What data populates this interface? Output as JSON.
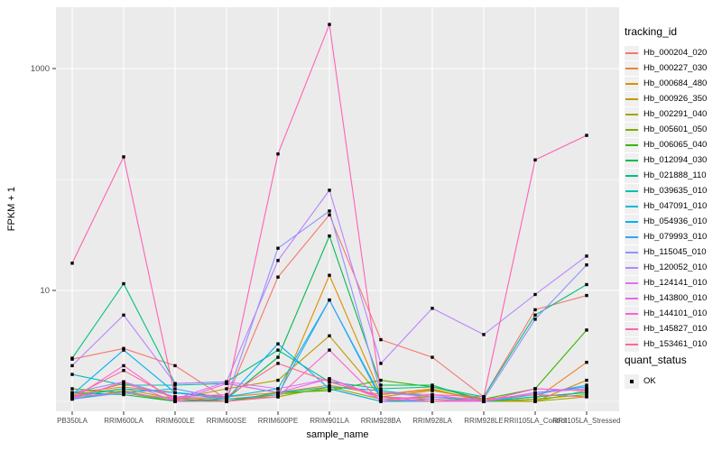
{
  "panel": {
    "bg": "#EBEBEB",
    "grid_major": "#FFFFFF",
    "grid_minor": "#FFFFFF",
    "tick_color": "#333333",
    "tick_label_color": "#4D4D4D",
    "point_color": "#000000"
  },
  "axes": {
    "y_title": "FPKM + 1",
    "x_title": "sample_name",
    "y_tick_labels": [
      "10",
      "1000"
    ]
  },
  "legend": {
    "title": "tracking_id"
  },
  "legend2": {
    "title": "quant_status",
    "items": [
      "OK"
    ]
  },
  "chart_data": {
    "type": "line",
    "title": "",
    "xlabel": "sample_name",
    "ylabel": "FPKM + 1",
    "y_scale": "log10",
    "y_ticks": [
      10,
      1000
    ],
    "y_minor": [
      1,
      100
    ],
    "ylim": [
      0.9,
      3200
    ],
    "grid": "on",
    "legend_position": "right",
    "categories": [
      "PB350LA",
      "RRIM600LA",
      "RRIM600LE",
      "RRIM600SE",
      "RRIM600PE",
      "RRIM901LA",
      "RRIM928BA",
      "RRIM928LA",
      "RRIM928LE",
      "RRII105LA_Control",
      "RRII105LA_Stressed"
    ],
    "series": [
      {
        "name": "Hb_000204_020",
        "color": "#F8766D",
        "values": [
          2.4,
          3.0,
          2.1,
          1.05,
          13.2,
          48,
          3.6,
          2.5,
          1.1,
          6.7,
          9.0
        ]
      },
      {
        "name": "Hb_000227_030",
        "color": "#EA8331",
        "values": [
          1.2,
          1.35,
          1.2,
          1.1,
          1.2,
          1.4,
          1.15,
          1.3,
          1.0,
          1.05,
          2.25
        ]
      },
      {
        "name": "Hb_000684_480",
        "color": "#D89000",
        "values": [
          1.1,
          1.45,
          1.1,
          1.0,
          1.1,
          13.7,
          1.15,
          1.28,
          1.0,
          1.0,
          1.55
        ]
      },
      {
        "name": "Hb_000926_350",
        "color": "#C09B00",
        "values": [
          1.15,
          1.3,
          1.05,
          1.3,
          1.55,
          3.9,
          1.1,
          1.25,
          1.05,
          1.0,
          1.25
        ]
      },
      {
        "name": "Hb_002291_040",
        "color": "#A3A500",
        "values": [
          1.05,
          1.25,
          1.0,
          1.05,
          1.1,
          1.35,
          1.05,
          1.1,
          1.0,
          1.0,
          1.1
        ]
      },
      {
        "name": "Hb_005601_050",
        "color": "#7CAE00",
        "values": [
          1.1,
          1.2,
          1.0,
          1.0,
          1.15,
          1.3,
          1.0,
          1.05,
          1.0,
          1.05,
          1.15
        ]
      },
      {
        "name": "Hb_006065_040",
        "color": "#39B600",
        "values": [
          1.3,
          1.2,
          1.05,
          1.0,
          1.2,
          1.25,
          1.55,
          1.35,
          1.05,
          1.3,
          4.4
        ]
      },
      {
        "name": "Hb_012094_030",
        "color": "#00BB4E",
        "values": [
          1.2,
          1.15,
          1.0,
          1.05,
          2.5,
          31,
          1.4,
          1.4,
          1.0,
          1.1,
          1.2
        ]
      },
      {
        "name": "Hb_021888_110",
        "color": "#00C087",
        "values": [
          2.45,
          11.5,
          1.45,
          1.5,
          2.9,
          1.5,
          1.3,
          1.35,
          1.1,
          6.0,
          11.3
        ]
      },
      {
        "name": "Hb_039635_010",
        "color": "#00C0AF",
        "values": [
          1.75,
          1.4,
          1.4,
          1.45,
          1.2,
          1.35,
          1.25,
          1.1,
          1.0,
          1.1,
          1.2
        ]
      },
      {
        "name": "Hb_047091_010",
        "color": "#00BCD8",
        "values": [
          1.1,
          1.3,
          1.2,
          1.1,
          1.3,
          8.2,
          1.1,
          1.05,
          1.0,
          1.2,
          1.3
        ]
      },
      {
        "name": "Hb_054936_010",
        "color": "#00B0F6",
        "values": [
          1.15,
          2.9,
          1.2,
          1.05,
          3.3,
          1.3,
          1.0,
          1.0,
          1.0,
          1.2,
          1.35
        ]
      },
      {
        "name": "Hb_079993_010",
        "color": "#35A2FF",
        "values": [
          1.05,
          1.2,
          1.3,
          1.05,
          1.15,
          8.2,
          1.05,
          1.0,
          1.0,
          1.15,
          1.4
        ]
      },
      {
        "name": "Hb_115045_010",
        "color": "#9590FF",
        "values": [
          1.2,
          1.5,
          1.1,
          1.05,
          24,
          52,
          1.2,
          1.1,
          1.05,
          5.5,
          17
        ]
      },
      {
        "name": "Hb_120052_010",
        "color": "#B983FF",
        "values": [
          2.1,
          6.0,
          1.45,
          1.5,
          18.6,
          80,
          2.2,
          6.9,
          4.0,
          9.2,
          20.4
        ]
      },
      {
        "name": "Hb_124141_010",
        "color": "#DB72FB",
        "values": [
          1.1,
          1.2,
          1.05,
          1.5,
          1.3,
          1.6,
          1.05,
          1.0,
          1.0,
          1.2,
          1.3
        ]
      },
      {
        "name": "Hb_143800_010",
        "color": "#F265E7",
        "values": [
          1.05,
          1.5,
          1.0,
          1.45,
          1.2,
          1.6,
          1.1,
          1.05,
          1.0,
          1.3,
          1.25
        ]
      },
      {
        "name": "Hb_144101_010",
        "color": "#FD61D3",
        "values": [
          1.05,
          2.1,
          1.0,
          1.0,
          1.1,
          2.9,
          1.0,
          1.15,
          1.0,
          1.3,
          1.25
        ]
      },
      {
        "name": "Hb_145827_010",
        "color": "#FF62B4",
        "values": [
          17.6,
          160,
          1.1,
          1.15,
          170,
          2500,
          1.2,
          1.15,
          1.1,
          150,
          250
        ]
      },
      {
        "name": "Hb_153461_010",
        "color": "#FF6890",
        "values": [
          1.1,
          1.9,
          1.05,
          1.1,
          2.2,
          1.5,
          1.1,
          1.0,
          1.05,
          1.15,
          1.1
        ]
      }
    ]
  }
}
